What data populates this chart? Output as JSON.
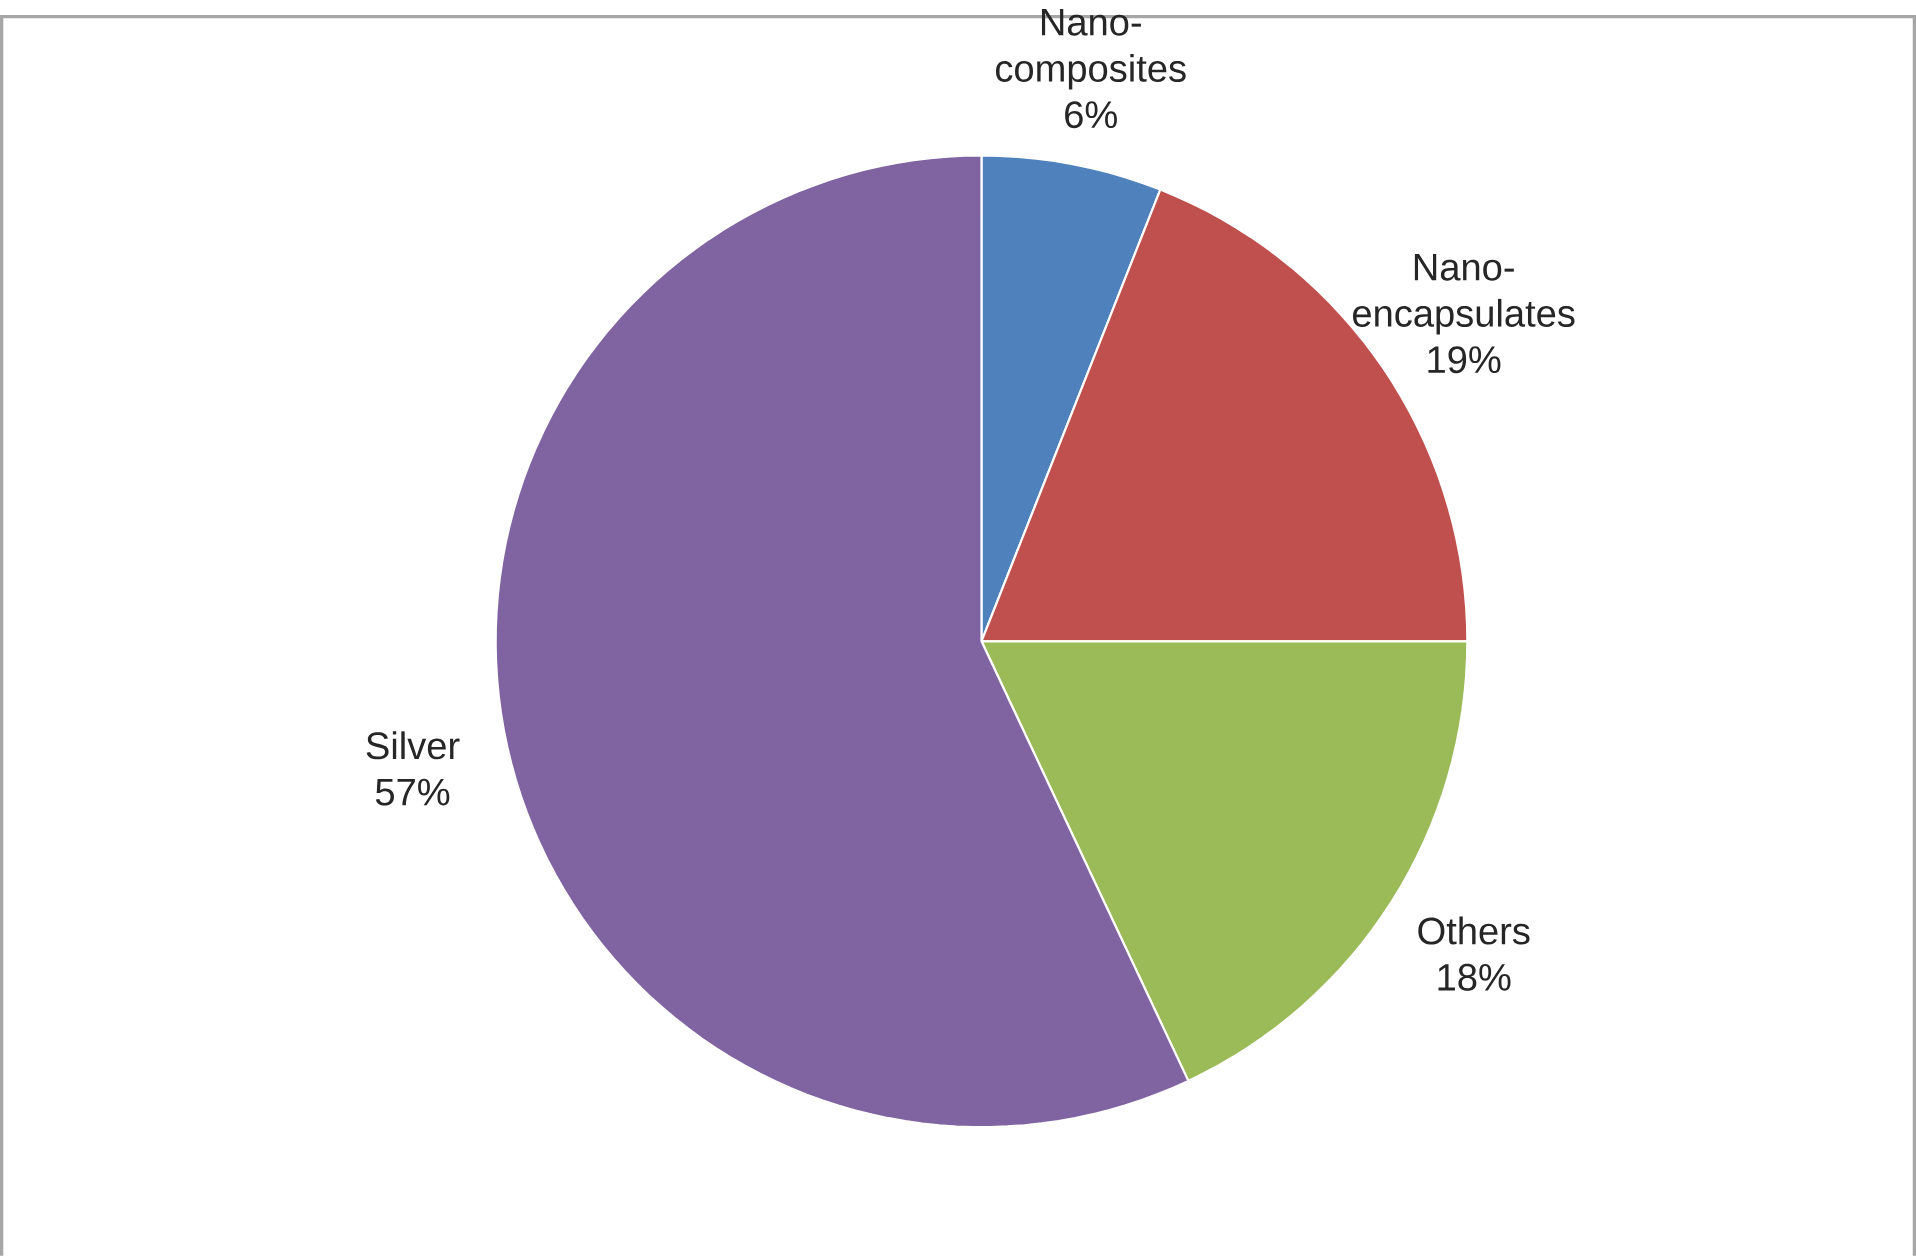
{
  "chart_data": {
    "type": "pie",
    "categories": [
      "Nano-composites",
      "Nano-encapsulates",
      "Others",
      "Silver"
    ],
    "values": [
      6,
      19,
      18,
      57
    ],
    "colors": [
      "#4f81bd",
      "#c0504d",
      "#9bbb59",
      "#8064a2"
    ],
    "value_labels": [
      "6%",
      "19%",
      "18%",
      "57%"
    ]
  }
}
